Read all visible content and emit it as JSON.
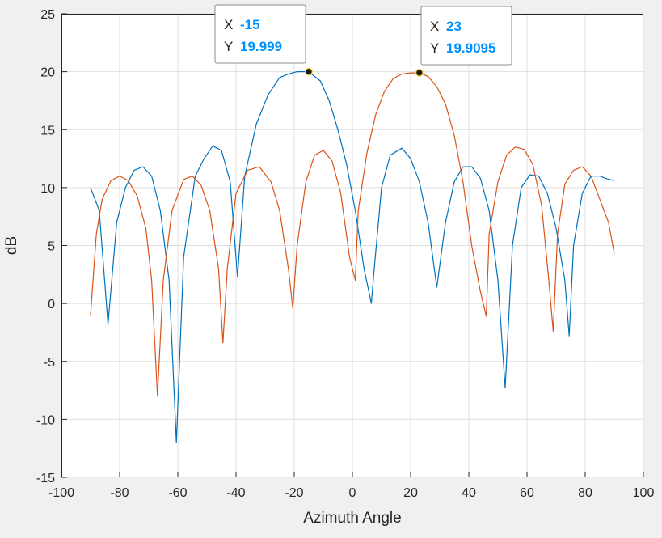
{
  "chart_data": {
    "type": "line",
    "xlabel": "Azimuth Angle",
    "ylabel": "dB",
    "xlim": [
      -100,
      100
    ],
    "ylim": [
      -15,
      25
    ],
    "xticks": [
      -100,
      -80,
      -60,
      -40,
      -20,
      0,
      20,
      40,
      60,
      80,
      100
    ],
    "yticks": [
      -15,
      -10,
      -5,
      0,
      5,
      10,
      15,
      20,
      25
    ],
    "grid": true,
    "series": [
      {
        "color": "#0072bd",
        "beam_peak_deg": -15,
        "peak_db": 19.999,
        "x": [
          -90,
          -87,
          -84,
          -81,
          -78,
          -75,
          -72,
          -69,
          -66,
          -63,
          -60.5,
          -58,
          -54,
          -51,
          -48,
          -45,
          -42,
          -39.5,
          -37,
          -33,
          -29,
          -25,
          -22,
          -19,
          -15,
          -11,
          -8,
          -5,
          -2,
          1,
          4,
          6.5,
          7.5,
          10,
          13,
          17,
          20,
          23,
          26,
          29,
          32,
          35,
          38,
          41,
          44,
          47,
          50,
          52.5,
          55,
          58,
          61,
          64,
          67,
          70,
          73,
          74.5,
          76,
          79,
          82,
          85,
          87,
          90
        ],
        "y": [
          10,
          8,
          -1.8,
          7,
          10,
          11.5,
          11.8,
          11,
          8,
          2,
          -12,
          4,
          11,
          12.5,
          13.6,
          13.2,
          10.5,
          2.3,
          11,
          15.5,
          18,
          19.5,
          19.8,
          20,
          20,
          19.2,
          17.5,
          15,
          12,
          8,
          3,
          0,
          3,
          10,
          12.8,
          13.4,
          12.5,
          10.5,
          7,
          1.4,
          7,
          10.5,
          11.8,
          11.8,
          10.8,
          8,
          2,
          -7.3,
          5,
          10,
          11.1,
          11,
          9.5,
          6.5,
          2,
          -2.8,
          5,
          9.5,
          11,
          11,
          10.8,
          10.6
        ]
      },
      {
        "color": "#d95319",
        "beam_peak_deg": 23,
        "peak_db": 19.9095,
        "x": [
          -90,
          -88,
          -86,
          -83,
          -80,
          -77,
          -74,
          -71,
          -69,
          -67,
          -65,
          -62,
          -58,
          -55,
          -52,
          -49,
          -46,
          -44.5,
          -43,
          -40,
          -36,
          -32,
          -28,
          -25,
          -22,
          -20.5,
          -19,
          -16,
          -13,
          -10,
          -7,
          -4,
          -1,
          1,
          2,
          5,
          8,
          11,
          14,
          17,
          20,
          23,
          26,
          29,
          32,
          35,
          38,
          41,
          44,
          46,
          47,
          50,
          53,
          56,
          59,
          62,
          65,
          67.5,
          69,
          70.5,
          73,
          76,
          79,
          82,
          85,
          88,
          90
        ],
        "y": [
          -1,
          6,
          9,
          10.6,
          11,
          10.6,
          9.3,
          6.5,
          2,
          -8,
          2,
          8,
          10.7,
          11,
          10.2,
          8,
          3,
          -3.4,
          3,
          9.5,
          11.5,
          11.8,
          10.5,
          8,
          3,
          -0.4,
          5,
          10.5,
          12.8,
          13.2,
          12.3,
          9.5,
          4,
          2,
          8,
          13,
          16.3,
          18.3,
          19.4,
          19.8,
          19.9,
          19.9,
          19.6,
          18.7,
          17.2,
          14.5,
          10.5,
          5,
          1,
          -1.1,
          6,
          10.5,
          12.8,
          13.5,
          13.3,
          12,
          8.5,
          2,
          -2.4,
          6,
          10.3,
          11.5,
          11.8,
          11,
          9,
          7,
          4.3
        ]
      }
    ],
    "datatips": [
      {
        "x": -15,
        "y": 19.999,
        "x_label": "X",
        "y_label": "Y",
        "x_value": "-15",
        "y_value": "19.999"
      },
      {
        "x": 23,
        "y": 19.9095,
        "x_label": "X",
        "y_label": "Y",
        "x_value": "23",
        "y_value": "19.9095"
      }
    ]
  }
}
